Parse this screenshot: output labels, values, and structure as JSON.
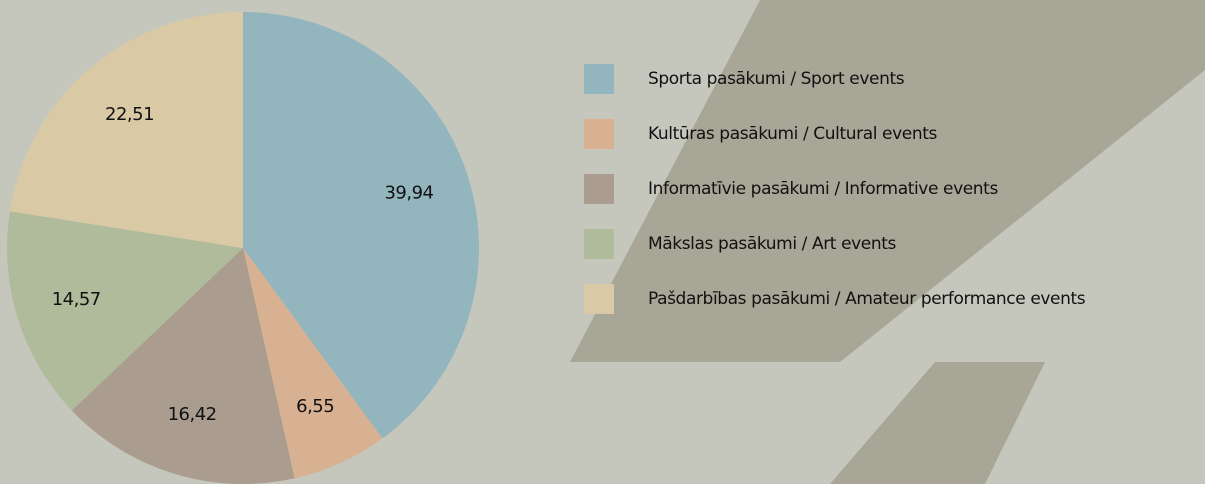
{
  "chart_data": {
    "type": "pie",
    "categories": [
      "Sporta pasākumi / Sport events",
      "Kultūras pasākumi / Cultural events",
      "Informatīvie pasākumi / Informative events",
      "Mākslas pasākumi / Art events",
      "Pašdarbības pasākumi / Amateur performance events"
    ],
    "values": [
      39.94,
      6.55,
      16.42,
      14.57,
      22.51
    ],
    "value_labels": [
      "39,94",
      "6,55",
      "16,42",
      "14,57",
      "22,51"
    ],
    "colors": [
      "#93b5be",
      "#d8b192",
      "#aa9d8f",
      "#b0bb9b",
      "#d9caa5"
    ],
    "legend": "right"
  }
}
